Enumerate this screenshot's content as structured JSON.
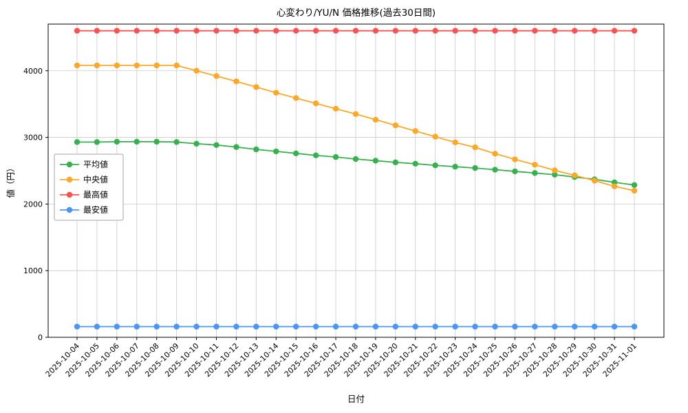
{
  "title": "心変わり/YU/N 価格推移(過去30日間)",
  "xlabel": "日付",
  "ylabel": "値（円）",
  "chart_data": {
    "type": "line",
    "x": [
      "2025-10-04",
      "2025-10-05",
      "2025-10-06",
      "2025-10-07",
      "2025-10-08",
      "2025-10-09",
      "2025-10-10",
      "2025-10-11",
      "2025-10-12",
      "2025-10-13",
      "2025-10-14",
      "2025-10-15",
      "2025-10-16",
      "2025-10-17",
      "2025-10-18",
      "2025-10-19",
      "2025-10-20",
      "2025-10-21",
      "2025-10-22",
      "2025-10-23",
      "2025-10-24",
      "2025-10-25",
      "2025-10-26",
      "2025-10-27",
      "2025-10-28",
      "2025-10-29",
      "2025-10-30",
      "2025-10-31",
      "2025-11-01"
    ],
    "series": [
      {
        "key": "average",
        "name": "平均値",
        "color": "#35b14e",
        "values": [
          2930,
          2930,
          2935,
          2935,
          2935,
          2930,
          2905,
          2885,
          2855,
          2820,
          2790,
          2760,
          2730,
          2705,
          2675,
          2650,
          2625,
          2605,
          2580,
          2560,
          2540,
          2515,
          2490,
          2465,
          2440,
          2405,
          2370,
          2325,
          2285
        ]
      },
      {
        "key": "median",
        "name": "中央値",
        "color": "#ffa726",
        "values": [
          4080,
          4080,
          4080,
          4080,
          4080,
          4080,
          4000,
          3920,
          3840,
          3755,
          3670,
          3590,
          3510,
          3430,
          3350,
          3265,
          3180,
          3095,
          3010,
          2925,
          2850,
          2755,
          2670,
          2590,
          2505,
          2430,
          2350,
          2265,
          2200
        ]
      },
      {
        "key": "max",
        "name": "最高値",
        "color": "#fa5252",
        "values": [
          4600,
          4600,
          4600,
          4600,
          4600,
          4600,
          4600,
          4600,
          4600,
          4600,
          4600,
          4600,
          4600,
          4600,
          4600,
          4600,
          4600,
          4600,
          4600,
          4600,
          4600,
          4600,
          4600,
          4600,
          4600,
          4600,
          4600,
          4600,
          4600
        ]
      },
      {
        "key": "min",
        "name": "最安値",
        "color": "#4b96f3",
        "values": [
          160,
          160,
          160,
          160,
          160,
          160,
          160,
          160,
          160,
          160,
          160,
          160,
          160,
          160,
          160,
          160,
          160,
          160,
          160,
          160,
          160,
          160,
          160,
          160,
          160,
          160,
          160,
          160,
          160
        ]
      }
    ],
    "ylim": [
      0,
      4700
    ],
    "yticks": [
      0,
      1000,
      2000,
      3000,
      4000
    ],
    "grid": true,
    "legend_position": "center-left",
    "background": "#ffffff",
    "grid_color": "#c9c9c9",
    "axis_color": "#000000"
  }
}
